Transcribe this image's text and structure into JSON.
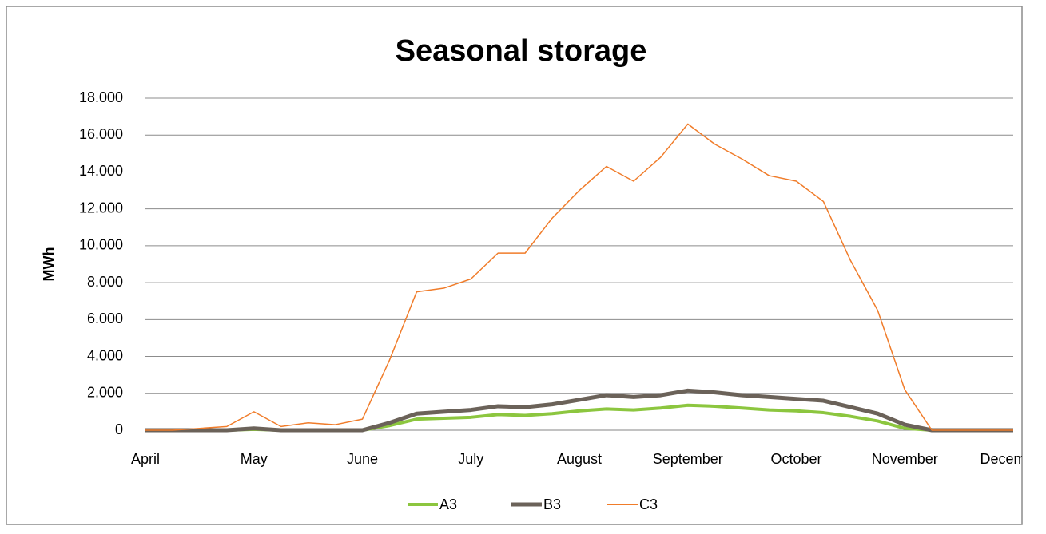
{
  "chart_data": {
    "type": "line",
    "title": "Seasonal storage",
    "y_label": "MWh",
    "categories": [
      "April",
      null,
      null,
      null,
      "May",
      null,
      null,
      null,
      "June",
      null,
      null,
      null,
      "July",
      null,
      null,
      null,
      "August",
      null,
      null,
      null,
      "September",
      null,
      null,
      null,
      "October",
      null,
      null,
      null,
      "November",
      null,
      null,
      null,
      "December"
    ],
    "series": [
      {
        "name": "A3",
        "color": "#8cc63f",
        "width": 4,
        "values": [
          0,
          0,
          0,
          0,
          50,
          0,
          0,
          0,
          0,
          250,
          600,
          650,
          700,
          850,
          800,
          900,
          1050,
          1150,
          1100,
          1200,
          1350,
          1300,
          1200,
          1100,
          1050,
          950,
          750,
          500,
          100,
          0,
          0,
          0,
          0
        ]
      },
      {
        "name": "B3",
        "color": "#6b6259",
        "width": 5,
        "values": [
          0,
          0,
          0,
          0,
          100,
          0,
          0,
          0,
          0,
          400,
          900,
          1000,
          1100,
          1300,
          1250,
          1400,
          1650,
          1900,
          1800,
          1900,
          2150,
          2050,
          1900,
          1800,
          1700,
          1600,
          1250,
          900,
          300,
          0,
          0,
          0,
          0
        ]
      },
      {
        "name": "C3",
        "color": "#f07c2a",
        "width": 1.5,
        "values": [
          0,
          0,
          100,
          200,
          1000,
          200,
          400,
          300,
          600,
          3800,
          7500,
          7700,
          8200,
          9600,
          9600,
          11500,
          13000,
          14300,
          13500,
          14800,
          16600,
          15500,
          14700,
          13800,
          13500,
          12400,
          9200,
          6500,
          2200,
          0,
          0,
          0,
          0
        ]
      }
    ],
    "ylim": [
      0,
      18000
    ],
    "yticks": [
      0,
      {
        "value": 2000,
        "label": "2.000"
      },
      {
        "value": 4000,
        "label": "4.000"
      },
      {
        "value": 6000,
        "label": "6.000"
      },
      {
        "value": 8000,
        "label": "8.000"
      },
      {
        "value": 10000,
        "label": "10.000"
      },
      {
        "value": 12000,
        "label": "12.000"
      },
      {
        "value": 14000,
        "label": "14.000"
      },
      {
        "value": 16000,
        "label": "16.000"
      },
      {
        "value": 18000,
        "label": "18.000"
      }
    ],
    "grid": true
  }
}
